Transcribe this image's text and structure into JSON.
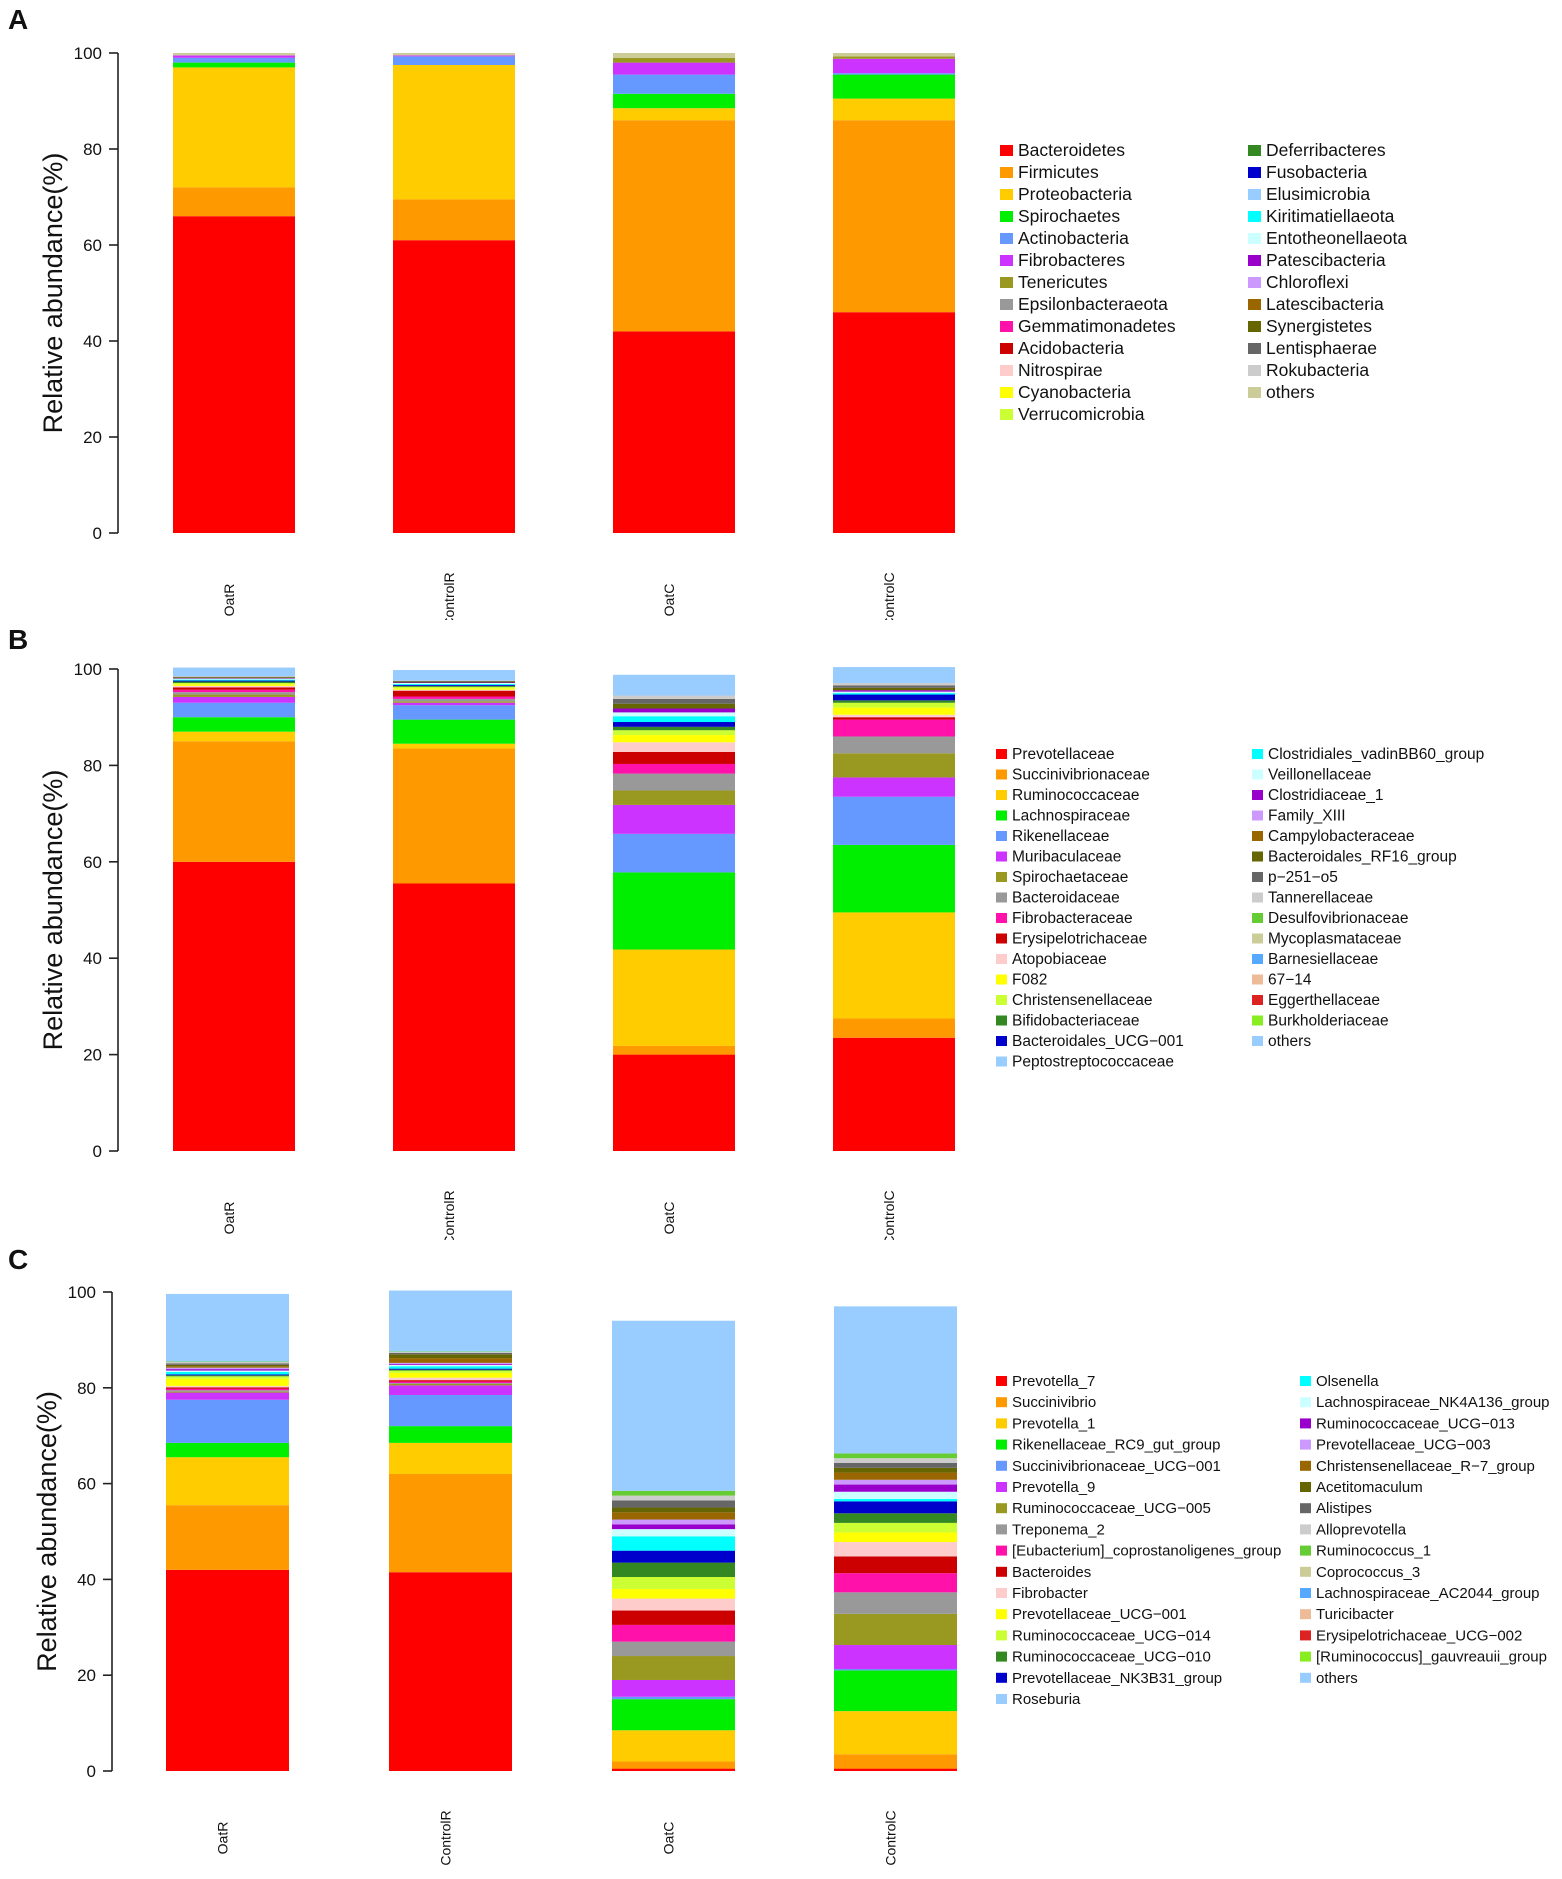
{
  "chart_data": [
    {
      "panel": "A",
      "type": "bar",
      "stacked": true,
      "categories": [
        "OatR",
        "ControlR",
        "OatC",
        "ControlC"
      ],
      "ylabel": "Relative abundance(%)",
      "xlabel": "",
      "ylim": [
        0,
        100
      ],
      "yticks": [
        "0",
        "20",
        "40",
        "60",
        "80",
        "100"
      ],
      "grid": false,
      "legend_position": "right",
      "legend_columns": [
        [
          "Bacteroidetes",
          "Firmicutes",
          "Proteobacteria",
          "Spirochaetes",
          "Actinobacteria",
          "Fibrobacteres",
          "Tenericutes",
          "Epsilonbacteraeota",
          "Gemmatimonadetes",
          "Acidobacteria",
          "Nitrospirae",
          "Cyanobacteria",
          "Verrucomicrobia"
        ],
        [
          "Deferribacteres",
          "Fusobacteria",
          "Elusimicrobia",
          "Kiritimatiellaeota",
          "Entotheonellaeota",
          "Patescibacteria",
          "Chloroflexi",
          "Latescibacteria",
          "Synergistetes",
          "Lentisphaerae",
          "Rokubacteria",
          "others"
        ]
      ],
      "colors": [
        "#ff0000",
        "#ff9900",
        "#ffcc00",
        "#00ee00",
        "#6699ff",
        "#cc33ff",
        "#999922",
        "#999999",
        "#ff11aa",
        "#cc0000",
        "#ffcccc",
        "#ffff00",
        "#ccff33",
        "#338822",
        "#0000cc",
        "#99ccff",
        "#00ffff",
        "#ccffff",
        "#9900cc",
        "#cc99ff",
        "#996600",
        "#666600",
        "#666666",
        "#cccccc",
        "#66cc33",
        "#cccc99"
      ],
      "series": [
        {
          "name": "Bacteroidetes",
          "values": [
            66,
            61,
            42,
            46
          ]
        },
        {
          "name": "Firmicutes",
          "values": [
            6,
            8.5,
            44,
            40
          ]
        },
        {
          "name": "Proteobacteria",
          "values": [
            25,
            28,
            2.5,
            4.5
          ]
        },
        {
          "name": "Spirochaetes",
          "values": [
            1,
            0,
            3,
            5
          ]
        },
        {
          "name": "Actinobacteria",
          "values": [
            1,
            1.8,
            4,
            0.3
          ]
        },
        {
          "name": "Fibrobacteres",
          "values": [
            0.5,
            0.2,
            2.5,
            3
          ]
        },
        {
          "name": "Tenericutes",
          "values": [
            0,
            0,
            1,
            0.5
          ]
        },
        {
          "name": "others",
          "values": [
            0.5,
            0.5,
            1,
            0.7
          ]
        }
      ]
    },
    {
      "panel": "B",
      "type": "bar",
      "stacked": true,
      "categories": [
        "OatR",
        "ControlR",
        "OatC",
        "ControlC"
      ],
      "ylabel": "Relative abundance(%)",
      "xlabel": "",
      "ylim": [
        0,
        100
      ],
      "yticks": [
        "0",
        "20",
        "40",
        "60",
        "80",
        "100"
      ],
      "grid": false,
      "legend_position": "right",
      "legend_columns": [
        [
          "Prevotellaceae",
          "Succinivibrionaceae",
          "Ruminococcaceae",
          "Lachnospiraceae",
          "Rikenellaceae",
          "Muribaculaceae",
          "Spirochaetaceae",
          "Bacteroidaceae",
          "Fibrobacteraceae",
          "Erysipelotrichaceae",
          "Atopobiaceae",
          "F082",
          "Christensenellaceae",
          "Bifidobacteriaceae",
          "Bacteroidales_UCG−001",
          "Peptostreptococcaceae"
        ],
        [
          "Clostridiales_vadinBB60_group",
          "Veillonellaceae",
          "Clostridiaceae_1",
          "Family_XIII",
          "Campylobacteraceae",
          "Bacteroidales_RF16_group",
          "p−251−o5",
          "Tannerellaceae",
          "Desulfovibrionaceae",
          "Mycoplasmataceae",
          "Barnesiellaceae",
          "67−14",
          "Eggerthellaceae",
          "Burkholderiaceae",
          "others"
        ]
      ],
      "colors": [
        "#ff0000",
        "#ff9900",
        "#ffcc00",
        "#00ee00",
        "#6699ff",
        "#cc33ff",
        "#999922",
        "#999999",
        "#ff11aa",
        "#cc0000",
        "#ffcccc",
        "#ffff00",
        "#ccff33",
        "#338822",
        "#0000cc",
        "#99ccff",
        "#00ffff",
        "#ccffff",
        "#9900cc",
        "#cc99ff",
        "#996600",
        "#666600",
        "#666666",
        "#cccccc",
        "#66cc33",
        "#cccc99",
        "#55aaff",
        "#eebb99",
        "#dd2222",
        "#88ee22",
        "#99ccff"
      ],
      "series": [
        {
          "name": "Prevotellaceae",
          "values": [
            60,
            55.5,
            20,
            23.5
          ]
        },
        {
          "name": "Succinivibrionaceae",
          "values": [
            25,
            28,
            1.8,
            4
          ]
        },
        {
          "name": "Ruminococcaceae",
          "values": [
            2,
            1,
            20,
            22
          ]
        },
        {
          "name": "Lachnospiraceae",
          "values": [
            3,
            5,
            16,
            14
          ]
        },
        {
          "name": "Rikenellaceae",
          "values": [
            3,
            3,
            8,
            10
          ]
        },
        {
          "name": "Muribaculaceae",
          "values": [
            1.2,
            0.5,
            6,
            4
          ]
        },
        {
          "name": "Spirochaetaceae",
          "values": [
            0.5,
            0.3,
            3,
            5
          ]
        },
        {
          "name": "Bacteroidaceae",
          "values": [
            0.5,
            0.5,
            3.5,
            3.5
          ]
        },
        {
          "name": "Fibrobacteraceae",
          "values": [
            0.5,
            0.5,
            2,
            3.5
          ]
        },
        {
          "name": "Erysipelotrichaceae",
          "values": [
            0.5,
            1.2,
            2.5,
            0.5
          ]
        },
        {
          "name": "Atopobiaceae",
          "values": [
            0.3,
            0.2,
            2,
            0.5
          ]
        },
        {
          "name": "F082",
          "values": [
            0.3,
            0.3,
            1.5,
            1.5
          ]
        },
        {
          "name": "Christensenellaceae",
          "values": [
            0.3,
            0.3,
            1,
            1
          ]
        },
        {
          "name": "Bifidobacteriaceae",
          "values": [
            0.3,
            0.2,
            0.7,
            0.5
          ]
        },
        {
          "name": "Bacteroidales_UCG−001",
          "values": [
            0.2,
            0.2,
            1,
            1.2
          ]
        },
        {
          "name": "Clostridiales_vadinBB60_group",
          "values": [
            0.2,
            0.2,
            1.2,
            0.3
          ]
        },
        {
          "name": "Veillonellaceae",
          "values": [
            0.2,
            0.2,
            0.8,
            0.3
          ]
        },
        {
          "name": "Clostridiaceae_1",
          "values": [
            0.1,
            0.1,
            0.8,
            0.3
          ]
        },
        {
          "name": "Bacteroidales_RF16_group",
          "values": [
            0.2,
            0.2,
            1,
            0.5
          ]
        },
        {
          "name": "p−251−o5",
          "values": [
            0.1,
            0.1,
            1,
            0.5
          ]
        },
        {
          "name": "Tannerellaceae",
          "values": [
            0.1,
            0.1,
            0.7,
            0.5
          ]
        },
        {
          "name": "others",
          "values": [
            1.8,
            2.2,
            4.3,
            3.3
          ]
        }
      ]
    },
    {
      "panel": "C",
      "type": "bar",
      "stacked": true,
      "categories": [
        "OatR",
        "ControlR",
        "OatC",
        "ControlC"
      ],
      "ylabel": "Relative abundance(%)",
      "xlabel": "",
      "ylim": [
        0,
        100
      ],
      "yticks": [
        "0",
        "20",
        "40",
        "60",
        "80",
        "100"
      ],
      "grid": false,
      "legend_position": "right",
      "legend_columns": [
        [
          "Prevotella_7",
          "Succinivibrio",
          "Prevotella_1",
          "Rikenellaceae_RC9_gut_group",
          "Succinivibrionaceae_UCG−001",
          "Prevotella_9",
          "Ruminococcaceae_UCG−005",
          "Treponema_2",
          "[Eubacterium]_coprostanoligenes_group",
          "Bacteroides",
          "Fibrobacter",
          "Prevotellaceae_UCG−001",
          "Ruminococcaceae_UCG−014",
          "Ruminococcaceae_UCG−010",
          "Prevotellaceae_NK3B31_group",
          "Roseburia"
        ],
        [
          "Olsenella",
          "Lachnospiraceae_NK4A136_group",
          "Ruminococcaceae_UCG−013",
          "Prevotellaceae_UCG−003",
          "Christensenellaceae_R−7_group",
          "Acetitomaculum",
          "Alistipes",
          "Alloprevotella",
          "Ruminococcus_1",
          "Coprococcus_3",
          "Lachnospiraceae_AC2044_group",
          "Turicibacter",
          "Erysipelotrichaceae_UCG−002",
          "[Ruminococcus]_gauvreauii_group",
          "others"
        ]
      ],
      "colors": [
        "#ff0000",
        "#ff9900",
        "#ffcc00",
        "#00ee00",
        "#6699ff",
        "#cc33ff",
        "#999922",
        "#999999",
        "#ff11aa",
        "#cc0000",
        "#ffcccc",
        "#ffff00",
        "#ccff33",
        "#338822",
        "#0000cc",
        "#99ccff",
        "#00ffff",
        "#ccffff",
        "#9900cc",
        "#cc99ff",
        "#996600",
        "#666600",
        "#666666",
        "#cccccc",
        "#66cc33",
        "#cccc99",
        "#55aaff",
        "#eebb99",
        "#dd2222",
        "#88ee22",
        "#99ccff"
      ],
      "series": [
        {
          "name": "Prevotella_7",
          "values": [
            42,
            41.5,
            0.5,
            0.5
          ]
        },
        {
          "name": "Succinivibrio",
          "values": [
            13.5,
            20.5,
            1.5,
            3
          ]
        },
        {
          "name": "Prevotella_1",
          "values": [
            10,
            6.5,
            6.5,
            9
          ]
        },
        {
          "name": "Rikenellaceae_RC9_gut_group",
          "values": [
            3,
            3.5,
            6.5,
            8.5
          ]
        },
        {
          "name": "Succinivibrionaceae_UCG−001",
          "values": [
            9,
            6.5,
            0.5,
            0.3
          ]
        },
        {
          "name": "Prevotella_9",
          "values": [
            1.5,
            2,
            3.5,
            5
          ]
        },
        {
          "name": "Ruminococcaceae_UCG−005",
          "values": [
            0.2,
            0.3,
            5,
            6.5
          ]
        },
        {
          "name": "Treponema_2",
          "values": [
            0.3,
            0.2,
            3,
            4.5
          ]
        },
        {
          "name": "[Eubacterium]_coprostanoligenes_group",
          "values": [
            0.3,
            0.3,
            3.5,
            4
          ]
        },
        {
          "name": "Bacteroides",
          "values": [
            0.3,
            0.3,
            3,
            3.5
          ]
        },
        {
          "name": "Fibrobacter",
          "values": [
            0.3,
            0.5,
            2.5,
            3
          ]
        },
        {
          "name": "Prevotellaceae_UCG−001",
          "values": [
            1.5,
            1,
            2,
            2
          ]
        },
        {
          "name": "Ruminococcaceae_UCG−014",
          "values": [
            0.5,
            0.5,
            2.5,
            2
          ]
        },
        {
          "name": "Ruminococcaceae_UCG−010",
          "values": [
            0.2,
            0.2,
            3,
            2
          ]
        },
        {
          "name": "Prevotellaceae_NK3B31_group",
          "values": [
            0.2,
            0.2,
            2.5,
            2.5
          ]
        },
        {
          "name": "Olsenella",
          "values": [
            0.5,
            0.5,
            3,
            0.5
          ]
        },
        {
          "name": "Lachnospiraceae_NK4A136_group",
          "values": [
            0.3,
            0.3,
            1.5,
            1.5
          ]
        },
        {
          "name": "Ruminococcaceae_UCG−013",
          "values": [
            0.3,
            0.2,
            1,
            1.5
          ]
        },
        {
          "name": "Prevotellaceae_UCG−003",
          "values": [
            0.3,
            0.2,
            1,
            1
          ]
        },
        {
          "name": "Christensenellaceae_R−7_group",
          "values": [
            0.3,
            1,
            1.5,
            1.5
          ]
        },
        {
          "name": "Acetitomaculum",
          "values": [
            0.3,
            0.8,
            1,
            1
          ]
        },
        {
          "name": "Alistipes",
          "values": [
            0.3,
            0.3,
            1.5,
            1
          ]
        },
        {
          "name": "Alloprevotella",
          "values": [
            0.3,
            0.2,
            1,
            1
          ]
        },
        {
          "name": "Ruminococcus_1",
          "values": [
            0.1,
            0.1,
            1,
            1
          ]
        },
        {
          "name": "others",
          "values": [
            14.1,
            12.7,
            35.5,
            30.7
          ]
        }
      ]
    }
  ]
}
